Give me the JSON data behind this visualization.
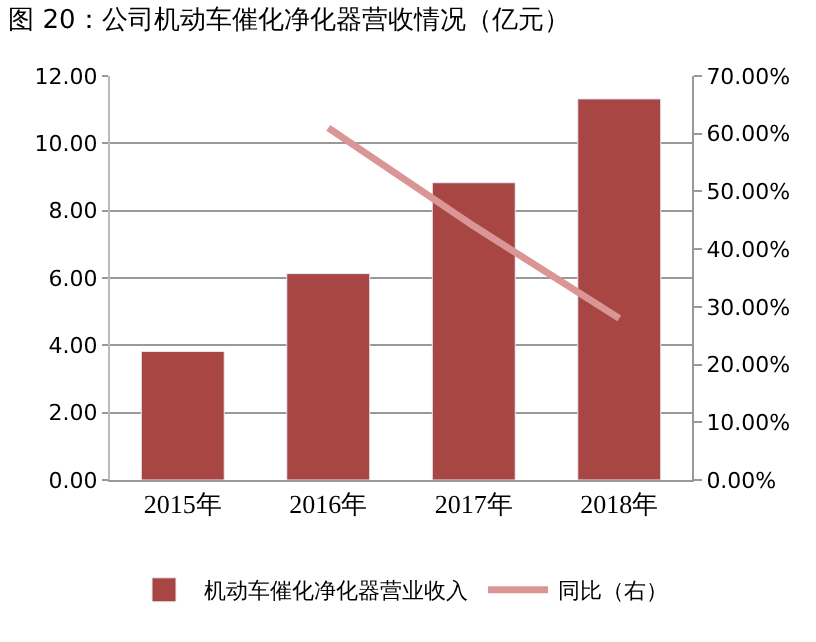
{
  "chart_data": {
    "type": "bar",
    "title": "图 20：公司机动车催化净化器营收情况（亿元）",
    "categories": [
      "2015年",
      "2016年",
      "2017年",
      "2018年"
    ],
    "series": [
      {
        "name": "机动车催化净化器营业收入",
        "color": "#a84644",
        "values": [
          3.82,
          6.13,
          8.83,
          11.32
        ]
      },
      {
        "name": "同比（右）",
        "type": "line",
        "axis": "y2",
        "color": "#d99694",
        "values": [
          null,
          61,
          44,
          28
        ]
      }
    ],
    "ylim": [
      0,
      12
    ],
    "yticks": [
      {
        "value": 0,
        "label": "0.00"
      },
      {
        "value": 2,
        "label": "2.00"
      },
      {
        "value": 4,
        "label": "4.00"
      },
      {
        "value": 6,
        "label": "6.00"
      },
      {
        "value": 8,
        "label": "8.00"
      },
      {
        "value": 10,
        "label": "10.00"
      },
      {
        "value": 12,
        "label": "12.00"
      }
    ],
    "y2lim": [
      0,
      70
    ],
    "y2ticks": [
      {
        "value": 0,
        "label": "0.00%"
      },
      {
        "value": 10,
        "label": "10.00%"
      },
      {
        "value": 20,
        "label": "20.00%"
      },
      {
        "value": 30,
        "label": "30.00%"
      },
      {
        "value": 40,
        "label": "40.00%"
      },
      {
        "value": 50,
        "label": "50.00%"
      },
      {
        "value": 60,
        "label": "60.00%"
      },
      {
        "value": 70,
        "label": "70.00%"
      }
    ],
    "grid": "y",
    "legend": "bottom",
    "marker": "none",
    "line_style": "solid"
  }
}
